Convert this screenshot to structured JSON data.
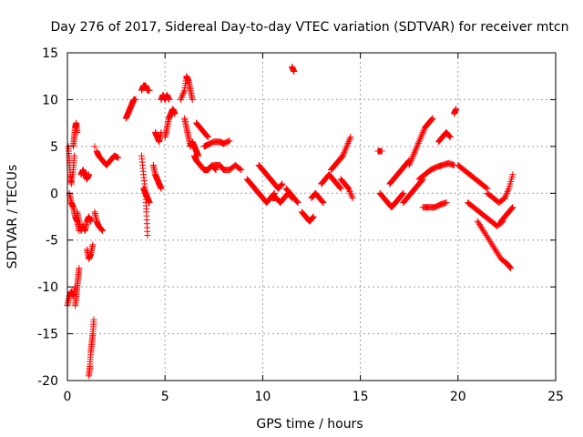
{
  "chart_data": {
    "type": "scatter",
    "title": "Day 276 of 2017, Sidereal Day-to-day VTEC variation (SDTVAR) for receiver mtcn",
    "xlabel": "GPS time / hours",
    "ylabel": "SDTVAR / TECUs",
    "xlim": [
      0,
      25
    ],
    "ylim": [
      -20,
      15
    ],
    "xticks": [
      0,
      5,
      10,
      15,
      20,
      25
    ],
    "yticks": [
      -20,
      -15,
      -10,
      -5,
      0,
      5,
      10,
      15
    ],
    "xtick_labels": [
      "0",
      "5",
      "10",
      "15",
      "20",
      "25"
    ],
    "ytick_labels": [
      "-20",
      "-15",
      "-10",
      "-5",
      "0",
      "5",
      "10",
      "15"
    ],
    "grid": true,
    "marker": "+",
    "color": "#ff0000",
    "segments": [
      {
        "x": [
          0.0,
          0.1,
          0.2,
          0.3,
          0.4
        ],
        "y": [
          -12,
          -11,
          -10.5,
          -11,
          -10
        ]
      },
      {
        "x": [
          0.05,
          0.1,
          0.15,
          0.2,
          0.3,
          0.35
        ],
        "y": [
          5,
          3.5,
          2,
          1,
          2.5,
          4
        ]
      },
      {
        "x": [
          0.1,
          0.2,
          0.3,
          0.4,
          0.5,
          0.6
        ],
        "y": [
          0,
          -1,
          -1.5,
          -2.5,
          -3,
          -4
        ]
      },
      {
        "x": [
          0.3,
          0.35,
          0.4,
          0.45,
          0.5
        ],
        "y": [
          5,
          6,
          7,
          7.5,
          6.5
        ]
      },
      {
        "x": [
          0.5,
          0.6,
          0.7,
          0.8,
          0.9,
          1.0,
          1.1,
          1.2
        ],
        "y": [
          -2,
          -3,
          -4,
          -3.5,
          -4,
          -3,
          -2.5,
          -3
        ]
      },
      {
        "x": [
          0.4,
          0.45,
          0.5,
          0.55,
          0.6
        ],
        "y": [
          -12,
          -11,
          -10,
          -9,
          -8
        ]
      },
      {
        "x": [
          0.7,
          0.8,
          0.9,
          1.0,
          1.1
        ],
        "y": [
          2,
          2.5,
          2,
          1.5,
          2
        ]
      },
      {
        "x": [
          1.1,
          1.15,
          1.2,
          1.25,
          1.3,
          1.35
        ],
        "y": [
          -19.5,
          -18.5,
          -17,
          -16,
          -15,
          -13.5
        ]
      },
      {
        "x": [
          1.0,
          1.1,
          1.2,
          1.3
        ],
        "y": [
          -6,
          -7,
          -6.5,
          -5.5
        ]
      },
      {
        "x": [
          1.5,
          1.6,
          1.8,
          2.0,
          2.2,
          2.4,
          2.6
        ],
        "y": [
          4.5,
          4,
          3.5,
          3,
          3.5,
          4,
          3.8
        ]
      },
      {
        "x": [
          1.4,
          1.5,
          1.6,
          1.8
        ],
        "y": [
          -2,
          -3,
          -3.5,
          -4
        ]
      },
      {
        "x": [
          1.4
        ],
        "y": [
          5
        ]
      },
      {
        "x": [
          3.0,
          3.1,
          3.2,
          3.3,
          3.4,
          3.5
        ],
        "y": [
          8,
          8.5,
          9,
          9.5,
          10,
          10
        ]
      },
      {
        "x": [
          3.8,
          3.9,
          4.0,
          4.1,
          4.2
        ],
        "y": [
          11,
          11.5,
          11.5,
          11,
          11
        ]
      },
      {
        "x": [
          3.8,
          3.9,
          4.0,
          4.05,
          4.1
        ],
        "y": [
          4,
          2,
          0,
          -2,
          -4.5
        ]
      },
      {
        "x": [
          3.9,
          4.0,
          4.1,
          4.2
        ],
        "y": [
          0.5,
          0,
          -0.5,
          -1
        ]
      },
      {
        "x": [
          4.5,
          4.6,
          4.7,
          4.8
        ],
        "y": [
          6.5,
          6,
          5.5,
          6.5
        ]
      },
      {
        "x": [
          4.4,
          4.5,
          4.6,
          4.7,
          4.8
        ],
        "y": [
          3,
          2,
          1.5,
          1,
          0.5
        ]
      },
      {
        "x": [
          4.8,
          4.9,
          5.0,
          5.1,
          5.2
        ],
        "y": [
          10,
          10.5,
          10,
          10.5,
          10
        ]
      },
      {
        "x": [
          5.0,
          5.1,
          5.2,
          5.3,
          5.4,
          5.5
        ],
        "y": [
          6,
          7,
          8,
          8.5,
          9,
          8.5
        ]
      },
      {
        "x": [
          5.8,
          6.0,
          6.1,
          6.2,
          6.3,
          6.4
        ],
        "y": [
          10,
          11,
          12.5,
          12,
          11,
          10
        ]
      },
      {
        "x": [
          6.0,
          6.1,
          6.2,
          6.3,
          6.4,
          6.5,
          6.6,
          6.7
        ],
        "y": [
          8,
          7,
          6,
          5,
          5.5,
          5,
          4.5,
          4
        ]
      },
      {
        "x": [
          6.5,
          6.6,
          6.8,
          7.0,
          7.2,
          7.4,
          7.6
        ],
        "y": [
          4,
          3.5,
          3,
          2.5,
          2.5,
          3,
          2.5
        ]
      },
      {
        "x": [
          6.6,
          6.8,
          7.0,
          7.2
        ],
        "y": [
          7.5,
          7,
          6.5,
          6
        ]
      },
      {
        "x": [
          7.0,
          7.2,
          7.5,
          7.8,
          8.0,
          8.3
        ],
        "y": [
          5,
          5.2,
          5.5,
          5.5,
          5.3,
          5.6
        ]
      },
      {
        "x": [
          7.5,
          7.8,
          8.0,
          8.3,
          8.6,
          8.9
        ],
        "y": [
          3,
          3,
          2.5,
          2.5,
          3,
          2.5
        ]
      },
      {
        "x": [
          9.2,
          9.4,
          9.6,
          9.8,
          10.0,
          10.2,
          10.4,
          10.6
        ],
        "y": [
          1.5,
          1,
          0.5,
          0,
          -0.5,
          -1,
          -0.5,
          0
        ]
      },
      {
        "x": [
          9.8,
          10.0,
          10.2,
          10.4,
          10.6,
          10.8,
          11.0
        ],
        "y": [
          3,
          2.5,
          2,
          1.5,
          1,
          0.5,
          1
        ]
      },
      {
        "x": [
          10.5,
          10.7,
          10.9,
          11.1,
          11.3,
          11.5
        ],
        "y": [
          -0.5,
          -0.5,
          -1,
          -0.5,
          0,
          -0.5
        ]
      },
      {
        "x": [
          11.2,
          11.4,
          11.6,
          11.8
        ],
        "y": [
          0.5,
          0,
          -0.5,
          -1
        ]
      },
      {
        "x": [
          11.5,
          11.6
        ],
        "y": [
          13.5,
          13
        ]
      },
      {
        "x": [
          12.0,
          12.2,
          12.4,
          12.6
        ],
        "y": [
          -2,
          -2.5,
          -3,
          -2.5
        ]
      },
      {
        "x": [
          12.5,
          12.7,
          12.9,
          13.1
        ],
        "y": [
          -0.5,
          0,
          -0.5,
          -1
        ]
      },
      {
        "x": [
          13.0,
          13.2,
          13.4,
          13.6,
          13.8,
          14.0
        ],
        "y": [
          1,
          1.5,
          2,
          1.5,
          1,
          0.5
        ]
      },
      {
        "x": [
          13.5,
          13.7,
          13.9,
          14.1,
          14.3,
          14.5
        ],
        "y": [
          2.5,
          3,
          3.5,
          4,
          5,
          6
        ]
      },
      {
        "x": [
          14.0,
          14.2,
          14.4,
          14.6
        ],
        "y": [
          1.5,
          1,
          0.5,
          -0.5
        ]
      },
      {
        "x": [
          15.9,
          16.0,
          16.1
        ],
        "y": [
          4.5,
          4.5,
          4.5
        ]
      },
      {
        "x": [
          16.0,
          16.2,
          16.4,
          16.6,
          16.8,
          17.0,
          17.2
        ],
        "y": [
          0,
          -0.5,
          -1,
          -1.5,
          -1,
          -0.5,
          0
        ]
      },
      {
        "x": [
          16.5,
          16.7,
          16.9,
          17.1,
          17.3,
          17.5
        ],
        "y": [
          1,
          1.5,
          2,
          2.5,
          3,
          3.5
        ]
      },
      {
        "x": [
          17.2,
          17.4,
          17.6,
          17.8,
          18.0,
          18.2
        ],
        "y": [
          -1,
          -0.5,
          0,
          0.5,
          1,
          1.5
        ]
      },
      {
        "x": [
          17.5,
          17.7,
          17.9,
          18.1,
          18.3,
          18.5,
          18.7
        ],
        "y": [
          3,
          4,
          5,
          6,
          7,
          7.5,
          8
        ]
      },
      {
        "x": [
          18.0,
          18.3,
          18.6,
          18.9,
          19.2,
          19.5,
          19.8
        ],
        "y": [
          1.5,
          2,
          2.5,
          2.8,
          3,
          3.2,
          3
        ]
      },
      {
        "x": [
          18.2,
          18.5,
          18.8,
          19.1,
          19.4
        ],
        "y": [
          -1.5,
          -1.5,
          -1.5,
          -1.2,
          -1
        ]
      },
      {
        "x": [
          19.0,
          19.2,
          19.4,
          19.6
        ],
        "y": [
          5.5,
          6,
          6.5,
          6
        ]
      },
      {
        "x": [
          19.8,
          19.9
        ],
        "y": [
          8.5,
          9
        ]
      },
      {
        "x": [
          20.0,
          20.3,
          20.6,
          20.9,
          21.2,
          21.5
        ],
        "y": [
          3,
          2.5,
          2,
          1.5,
          1,
          0.5
        ]
      },
      {
        "x": [
          20.5,
          20.8,
          21.1,
          21.4,
          21.7,
          22.0,
          22.3
        ],
        "y": [
          -1,
          -1.5,
          -2,
          -2.5,
          -3,
          -3.5,
          -3
        ]
      },
      {
        "x": [
          21.0,
          21.3,
          21.6,
          21.9,
          22.2,
          22.5,
          22.7
        ],
        "y": [
          -3,
          -4,
          -5,
          -6,
          -7,
          -7.5,
          -8
        ]
      },
      {
        "x": [
          21.5,
          21.8,
          22.1,
          22.4,
          22.6,
          22.8
        ],
        "y": [
          0,
          -0.5,
          -1,
          -0.5,
          0.5,
          2
        ]
      },
      {
        "x": [
          22.2,
          22.4,
          22.6,
          22.8
        ],
        "y": [
          -3,
          -2.5,
          -2,
          -1.5
        ]
      }
    ]
  }
}
